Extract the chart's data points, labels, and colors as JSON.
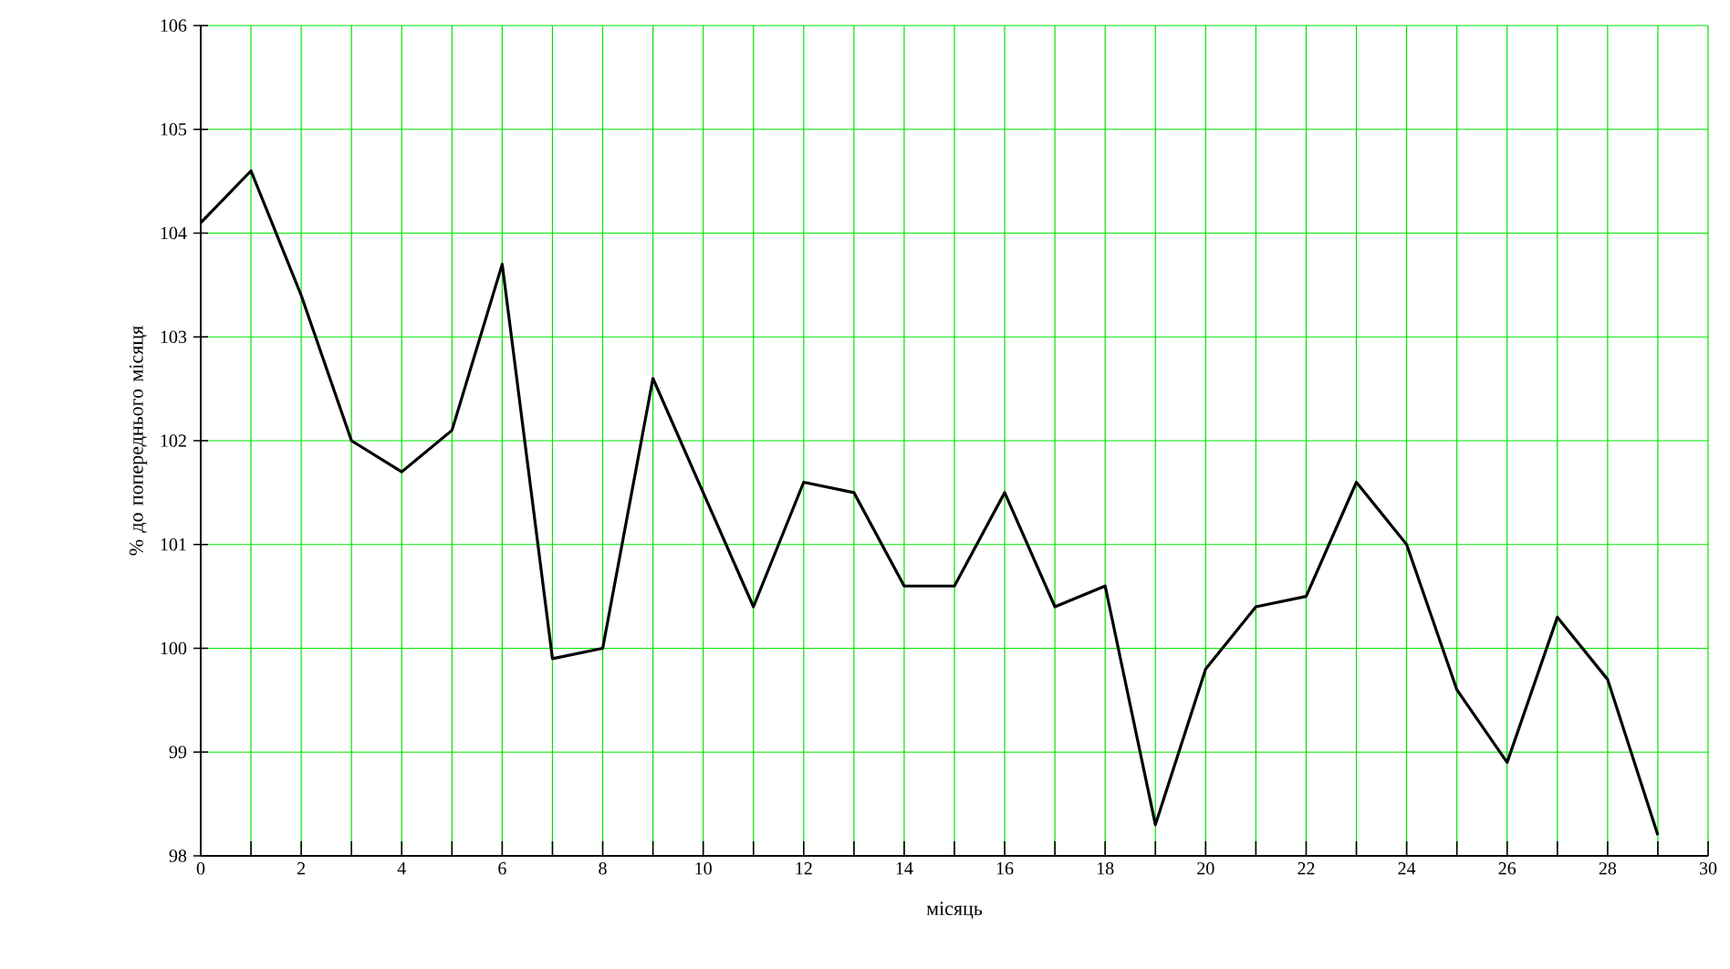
{
  "chart_data": {
    "type": "line",
    "xlabel": "місяць",
    "ylabel": "% до попереднього місяця",
    "x": [
      0,
      1,
      2,
      3,
      4,
      5,
      6,
      7,
      8,
      9,
      10,
      11,
      12,
      13,
      14,
      15,
      16,
      17,
      18,
      19,
      20,
      21,
      22,
      23,
      24,
      25,
      26,
      27,
      28,
      29
    ],
    "series": [
      {
        "color": "#000000",
        "values": [
          104.1,
          104.6,
          103.4,
          102.0,
          101.7,
          102.1,
          103.7,
          99.9,
          100.0,
          102.6,
          101.5,
          100.4,
          101.6,
          101.5,
          100.6,
          100.6,
          101.5,
          100.4,
          100.6,
          98.3,
          99.8,
          100.4,
          100.5,
          101.6,
          101.0,
          99.6,
          98.9,
          100.3,
          99.7,
          98.2
        ]
      }
    ],
    "xlim": [
      0,
      30
    ],
    "ylim": [
      98,
      106
    ],
    "xticks": [
      0,
      {
        "value": 1,
        "label": null
      },
      2,
      {
        "value": 3,
        "label": null
      },
      4,
      {
        "value": 5,
        "label": null
      },
      6,
      {
        "value": 7,
        "label": null
      },
      8,
      {
        "value": 9,
        "label": null
      },
      10,
      {
        "value": 11,
        "label": null
      },
      12,
      {
        "value": 13,
        "label": null
      },
      14,
      {
        "value": 15,
        "label": null
      },
      16,
      {
        "value": 17,
        "label": null
      },
      18,
      {
        "value": 19,
        "label": null
      },
      20,
      {
        "value": 21,
        "label": null
      },
      22,
      {
        "value": 23,
        "label": null
      },
      24,
      {
        "value": 25,
        "label": null
      },
      26,
      {
        "value": 27,
        "label": null
      },
      28,
      {
        "value": 29,
        "label": null
      },
      30
    ],
    "yticks": [
      98,
      99,
      100,
      101,
      102,
      103,
      104,
      105,
      106
    ],
    "grid": true,
    "marker": "none",
    "line_style": "solid"
  }
}
